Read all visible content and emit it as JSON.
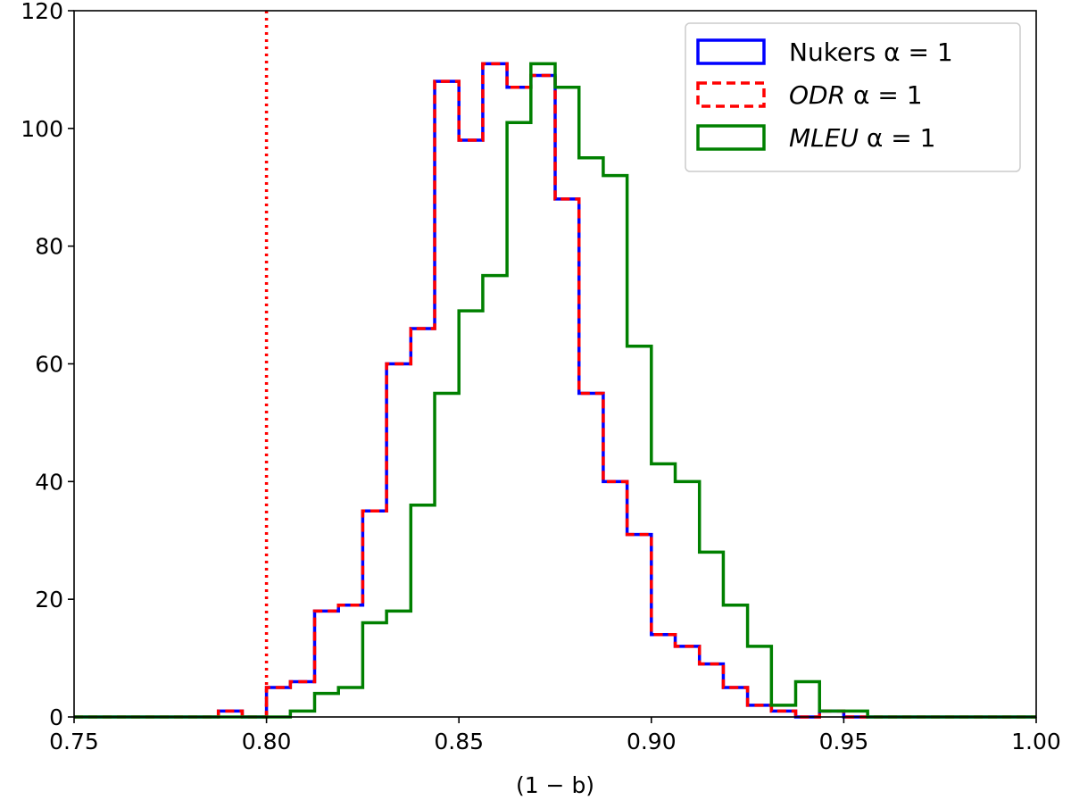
{
  "chart_data": {
    "type": "histogram",
    "title": "",
    "xlabel": "(1 − b)",
    "ylabel": "",
    "xlim": [
      0.75,
      1.0
    ],
    "ylim": [
      0,
      120
    ],
    "xticks": [
      0.75,
      0.8,
      0.85,
      0.9,
      0.95,
      1.0
    ],
    "xtick_labels": [
      "0.75",
      "0.80",
      "0.85",
      "0.90",
      "0.95",
      "1.00"
    ],
    "yticks": [
      0,
      20,
      40,
      60,
      80,
      100,
      120
    ],
    "ytick_labels": [
      "0",
      "20",
      "40",
      "60",
      "80",
      "100",
      "120"
    ],
    "grid": false,
    "legend_position": "top-right",
    "reference_line": {
      "x": 0.8,
      "color": "#ff0000",
      "style": "dotted"
    },
    "series": [
      {
        "name": "Nukers",
        "legend_label": "Nukers  α = 1",
        "color": "#0000ff",
        "style": "solid",
        "bin_edges": [
          0.7875,
          0.7937,
          0.8,
          0.8062,
          0.8125,
          0.8187,
          0.825,
          0.8312,
          0.8375,
          0.8437,
          0.85,
          0.8562,
          0.8625,
          0.8687,
          0.875,
          0.8812,
          0.8875,
          0.8937,
          0.9,
          0.9062,
          0.9125,
          0.9187,
          0.925,
          0.9312,
          0.9375,
          0.9437,
          0.95,
          0.9562
        ],
        "counts": [
          1,
          0,
          5,
          6,
          18,
          19,
          35,
          60,
          66,
          108,
          98,
          111,
          107,
          109,
          88,
          55,
          40,
          31,
          14,
          12,
          9,
          5,
          2,
          1,
          0,
          1,
          0
        ]
      },
      {
        "name": "ODR",
        "legend_label": "ODR α = 1",
        "color": "#ff0000",
        "style": "dashed",
        "bin_edges": [
          0.7875,
          0.7937,
          0.8,
          0.8062,
          0.8125,
          0.8187,
          0.825,
          0.8312,
          0.8375,
          0.8437,
          0.85,
          0.8562,
          0.8625,
          0.8687,
          0.875,
          0.8812,
          0.8875,
          0.8937,
          0.9,
          0.9062,
          0.9125,
          0.9187,
          0.925,
          0.9312,
          0.9375,
          0.9437,
          0.95,
          0.9562
        ],
        "counts": [
          1,
          0,
          5,
          6,
          18,
          19,
          35,
          60,
          66,
          108,
          98,
          111,
          107,
          109,
          88,
          55,
          40,
          31,
          14,
          12,
          9,
          5,
          2,
          1,
          0,
          1,
          0
        ]
      },
      {
        "name": "MLEU",
        "legend_label": "MLEU α = 1",
        "color": "#008000",
        "style": "solid",
        "bin_edges": [
          0.8062,
          0.8125,
          0.8187,
          0.825,
          0.8312,
          0.8375,
          0.8437,
          0.85,
          0.8562,
          0.8625,
          0.8687,
          0.875,
          0.8812,
          0.8875,
          0.8937,
          0.9,
          0.9062,
          0.9125,
          0.9187,
          0.925,
          0.9312,
          0.9375,
          0.9437,
          0.95,
          0.9562
        ],
        "counts": [
          1,
          4,
          5,
          16,
          18,
          36,
          55,
          69,
          75,
          101,
          111,
          107,
          95,
          92,
          63,
          43,
          40,
          28,
          19,
          12,
          2,
          6,
          1,
          1
        ]
      }
    ]
  },
  "legend": {
    "items": [
      {
        "label_main": "Nukers",
        "label_alpha": "α = 1",
        "italic": false
      },
      {
        "label_main": "ODR",
        "label_alpha": "α = 1",
        "italic": true
      },
      {
        "label_main": "MLEU",
        "label_alpha": "α = 1",
        "italic": true
      }
    ]
  }
}
